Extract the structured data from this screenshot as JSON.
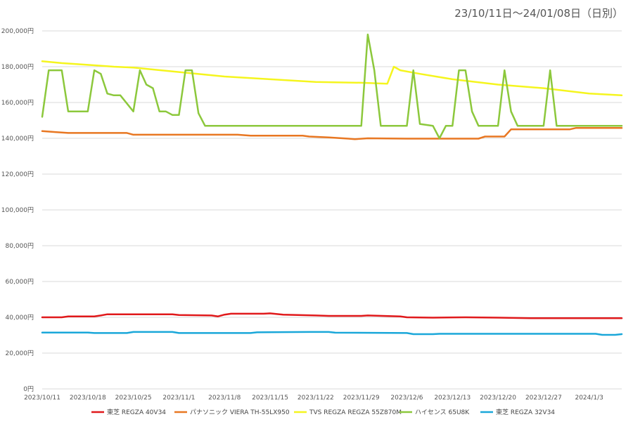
{
  "chart_data": {
    "type": "line",
    "date_range_label": "23/10/11日〜24/01/08日（日別）",
    "ylim": [
      0,
      200000
    ],
    "y_ticks": [
      "0円",
      "20,000円",
      "40,000円",
      "60,000円",
      "80,000円",
      "100,000円",
      "120,000円",
      "140,000円",
      "160,000円",
      "180,000円",
      "200,000円"
    ],
    "y_tick_values": [
      0,
      20000,
      40000,
      60000,
      80000,
      100000,
      120000,
      140000,
      160000,
      180000,
      200000
    ],
    "x_start": "2023-10-11",
    "x_end": "2024-01-08",
    "x_ticks": [
      "2023/10/11",
      "2023/10/18",
      "2023/10/25",
      "2023/11/1",
      "2023/11/8",
      "2023/11/15",
      "2023/11/22",
      "2023/11/29",
      "2023/12/6",
      "2023/12/13",
      "2023/12/20",
      "2023/12/27",
      "2024/1/3"
    ],
    "x_tick_dates": [
      "2023-10-11",
      "2023-10-18",
      "2023-10-25",
      "2023-11-01",
      "2023-11-08",
      "2023-11-15",
      "2023-11-22",
      "2023-11-29",
      "2023-12-06",
      "2023-12-13",
      "2023-12-20",
      "2023-12-27",
      "2024-01-03"
    ],
    "grid": "horizontal",
    "legend_position": "bottom",
    "series": [
      {
        "name": "東芝 REGZA 40V34",
        "color": "#e0191b",
        "points": [
          [
            "2023-10-11",
            40000
          ],
          [
            "2023-10-14",
            40000
          ],
          [
            "2023-10-15",
            40500
          ],
          [
            "2023-10-19",
            40500
          ],
          [
            "2023-10-20",
            41000
          ],
          [
            "2023-10-21",
            41700
          ],
          [
            "2023-10-31",
            41700
          ],
          [
            "2023-11-01",
            41300
          ],
          [
            "2023-11-06",
            41000
          ],
          [
            "2023-11-07",
            40500
          ],
          [
            "2023-11-08",
            41500
          ],
          [
            "2023-11-09",
            42000
          ],
          [
            "2023-11-14",
            42000
          ],
          [
            "2023-11-15",
            42200
          ],
          [
            "2023-11-17",
            41500
          ],
          [
            "2023-11-22",
            41000
          ],
          [
            "2023-11-24",
            40800
          ],
          [
            "2023-11-29",
            40800
          ],
          [
            "2023-11-30",
            41000
          ],
          [
            "2023-12-05",
            40500
          ],
          [
            "2023-12-06",
            40000
          ],
          [
            "2023-12-10",
            39800
          ],
          [
            "2023-12-15",
            40000
          ],
          [
            "2023-12-20",
            39800
          ],
          [
            "2023-12-25",
            39500
          ],
          [
            "2024-01-08",
            39500
          ]
        ]
      },
      {
        "name": "パナソニック VIERA TH-55LX950",
        "color": "#e87722",
        "points": [
          [
            "2023-10-11",
            144000
          ],
          [
            "2023-10-13",
            143500
          ],
          [
            "2023-10-15",
            143000
          ],
          [
            "2023-10-24",
            143000
          ],
          [
            "2023-10-25",
            142000
          ],
          [
            "2023-11-10",
            142000
          ],
          [
            "2023-11-12",
            141500
          ],
          [
            "2023-11-20",
            141500
          ],
          [
            "2023-11-21",
            141000
          ],
          [
            "2023-11-24",
            140500
          ],
          [
            "2023-11-27",
            139800
          ],
          [
            "2023-11-28",
            139500
          ],
          [
            "2023-11-30",
            140000
          ],
          [
            "2023-12-06",
            139800
          ],
          [
            "2023-12-17",
            139800
          ],
          [
            "2023-12-18",
            141000
          ],
          [
            "2023-12-21",
            141000
          ],
          [
            "2023-12-22",
            145000
          ],
          [
            "2023-12-31",
            145000
          ],
          [
            "2024-01-01",
            145800
          ],
          [
            "2024-01-08",
            145800
          ]
        ]
      },
      {
        "name": "TVS REGZA REGZA 55Z870M",
        "color": "#f5f51e",
        "points": [
          [
            "2023-10-11",
            183000
          ],
          [
            "2023-10-14",
            182000
          ],
          [
            "2023-10-18",
            181000
          ],
          [
            "2023-10-22",
            180000
          ],
          [
            "2023-10-25",
            179500
          ],
          [
            "2023-11-01",
            177000
          ],
          [
            "2023-11-08",
            174500
          ],
          [
            "2023-11-15",
            173000
          ],
          [
            "2023-11-22",
            171500
          ],
          [
            "2023-11-29",
            171000
          ],
          [
            "2023-12-03",
            170500
          ],
          [
            "2023-12-04",
            180000
          ],
          [
            "2023-12-05",
            178000
          ],
          [
            "2023-12-08",
            176000
          ],
          [
            "2023-12-13",
            173000
          ],
          [
            "2023-12-20",
            170000
          ],
          [
            "2023-12-27",
            168000
          ],
          [
            "2024-01-03",
            165000
          ],
          [
            "2024-01-08",
            164000
          ]
        ]
      },
      {
        "name": "ハイセンス 65U8K",
        "color": "#8cc83c",
        "points": [
          [
            "2023-10-11",
            152000
          ],
          [
            "2023-10-12",
            178000
          ],
          [
            "2023-10-14",
            178000
          ],
          [
            "2023-10-15",
            155000
          ],
          [
            "2023-10-18",
            155000
          ],
          [
            "2023-10-19",
            178000
          ],
          [
            "2023-10-20",
            176000
          ],
          [
            "2023-10-21",
            165000
          ],
          [
            "2023-10-22",
            164000
          ],
          [
            "2023-10-23",
            164000
          ],
          [
            "2023-10-25",
            155000
          ],
          [
            "2023-10-26",
            178000
          ],
          [
            "2023-10-27",
            170000
          ],
          [
            "2023-10-28",
            168000
          ],
          [
            "2023-10-29",
            155000
          ],
          [
            "2023-10-30",
            155000
          ],
          [
            "2023-10-31",
            153000
          ],
          [
            "2023-11-01",
            153000
          ],
          [
            "2023-11-02",
            178000
          ],
          [
            "2023-11-03",
            178000
          ],
          [
            "2023-11-04",
            154000
          ],
          [
            "2023-11-05",
            147000
          ],
          [
            "2023-11-29",
            147000
          ],
          [
            "2023-11-30",
            198000
          ],
          [
            "2023-12-01",
            178000
          ],
          [
            "2023-12-02",
            147000
          ],
          [
            "2023-12-06",
            147000
          ],
          [
            "2023-12-07",
            178000
          ],
          [
            "2023-12-08",
            148000
          ],
          [
            "2023-12-10",
            147000
          ],
          [
            "2023-12-11",
            140000
          ],
          [
            "2023-12-12",
            147000
          ],
          [
            "2023-12-13",
            147000
          ],
          [
            "2023-12-14",
            178000
          ],
          [
            "2023-12-15",
            178000
          ],
          [
            "2023-12-16",
            155000
          ],
          [
            "2023-12-17",
            147000
          ],
          [
            "2023-12-20",
            147000
          ],
          [
            "2023-12-21",
            178000
          ],
          [
            "2023-12-22",
            155000
          ],
          [
            "2023-12-23",
            147000
          ],
          [
            "2023-12-27",
            147000
          ],
          [
            "2023-12-28",
            178000
          ],
          [
            "2023-12-29",
            147000
          ],
          [
            "2024-01-08",
            147000
          ]
        ]
      },
      {
        "name": "東芝 REGZA 32V34",
        "color": "#1aa7d9",
        "points": [
          [
            "2023-10-11",
            31500
          ],
          [
            "2023-10-18",
            31500
          ],
          [
            "2023-10-19",
            31200
          ],
          [
            "2023-10-24",
            31200
          ],
          [
            "2023-10-25",
            31800
          ],
          [
            "2023-10-31",
            31800
          ],
          [
            "2023-11-01",
            31200
          ],
          [
            "2023-11-12",
            31200
          ],
          [
            "2023-11-13",
            31600
          ],
          [
            "2023-11-21",
            31800
          ],
          [
            "2023-11-24",
            31800
          ],
          [
            "2023-11-25",
            31400
          ],
          [
            "2023-12-06",
            31200
          ],
          [
            "2023-12-07",
            30600
          ],
          [
            "2023-12-10",
            30600
          ],
          [
            "2023-12-11",
            30800
          ],
          [
            "2023-12-20",
            30800
          ],
          [
            "2024-01-04",
            30800
          ],
          [
            "2024-01-05",
            30200
          ],
          [
            "2024-01-07",
            30200
          ],
          [
            "2024-01-08",
            30600
          ]
        ]
      }
    ]
  }
}
